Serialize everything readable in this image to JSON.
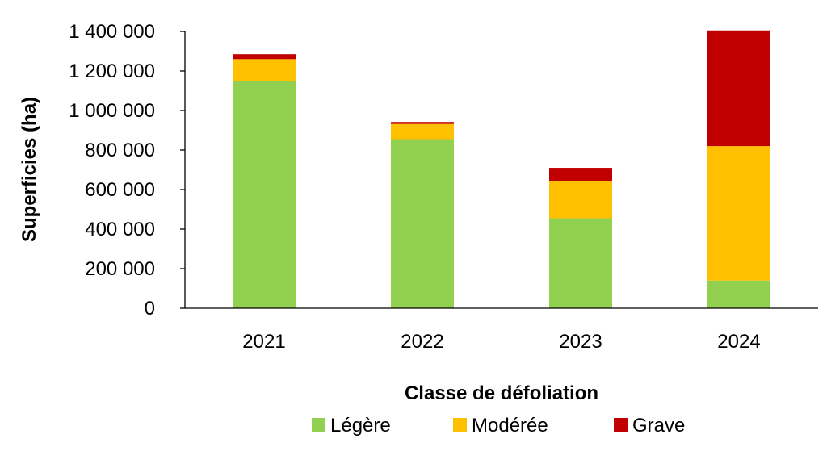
{
  "chart_data": {
    "type": "bar",
    "stacked": true,
    "title": "",
    "xlabel": "Classe de défoliation",
    "ylabel": "Superficies (ha)",
    "categories": [
      "2021",
      "2022",
      "2023",
      "2024"
    ],
    "series": [
      {
        "name": "Légère",
        "color": "#92D050",
        "values": [
          1150000,
          855000,
          455000,
          140000
        ]
      },
      {
        "name": "Modérée",
        "color": "#FFC000",
        "values": [
          110000,
          77000,
          190000,
          680000
        ]
      },
      {
        "name": "Grave",
        "color": "#C00000",
        "values": [
          25000,
          10000,
          65000,
          585000
        ]
      }
    ],
    "ylim": [
      0,
      1400000
    ],
    "yticks": [
      0,
      200000,
      400000,
      600000,
      800000,
      1000000,
      1200000,
      1400000
    ],
    "ytick_labels": [
      "0",
      "200 000",
      "400 000",
      "600 000",
      "800 000",
      "1 000 000",
      "1 200 000",
      "1 400 000"
    ],
    "grid": false,
    "legend_position": "bottom"
  }
}
